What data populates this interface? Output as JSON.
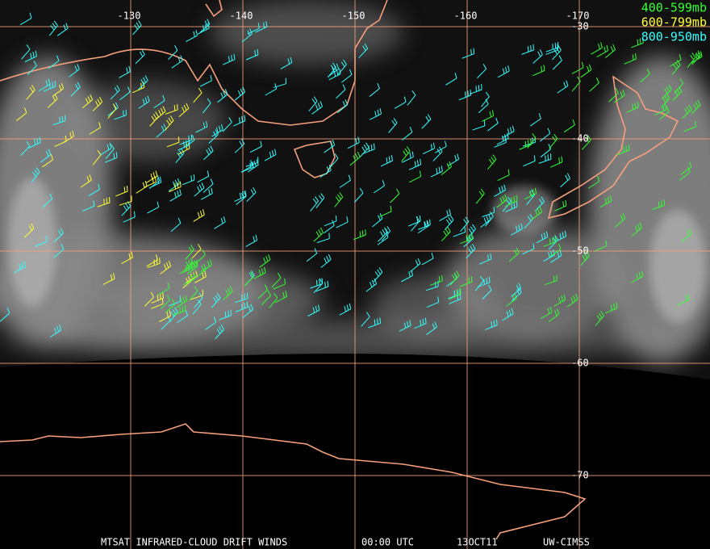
{
  "map": {
    "longitudes": [
      -130,
      -140,
      -150,
      -160,
      -170
    ],
    "latitudes": [
      -30,
      -40,
      -50,
      -60,
      -70
    ],
    "legend": [
      {
        "label": "400-599mb",
        "color": "#33ff33"
      },
      {
        "label": "600-799mb",
        "color": "#ffff33"
      },
      {
        "label": "800-950mb",
        "color": "#33ffff"
      }
    ],
    "footer": [
      "MTSAT INFRARED-CLOUD DRIFT WINDS",
      "00:00 UTC",
      "13OCT11",
      "UW-CIMSS"
    ]
  }
}
